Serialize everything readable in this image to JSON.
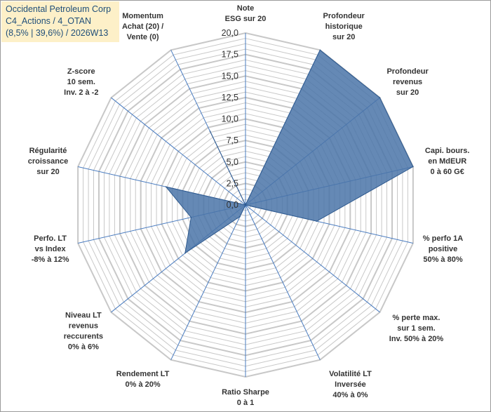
{
  "title_box": {
    "line1": "Occidental Petroleum Corp",
    "line2": "C4_Actions / 4_OTAN",
    "line3": "(8,5% | 39,6%) / 2026W13"
  },
  "colors": {
    "series_fill": "#4a74a8",
    "series_stroke": "#2f5a8f",
    "grid": "#c8c8c8",
    "spoke": "#4a7cc0"
  },
  "chart_data": {
    "type": "radar",
    "title": "",
    "rlim": [
      0,
      20
    ],
    "ticks": [
      0,
      2.5,
      5,
      7.5,
      10,
      12.5,
      15,
      17.5,
      20
    ],
    "tick_labels": [
      "0,0",
      "2,5",
      "5,0",
      "7,5",
      "10,0",
      "12,5",
      "15,0",
      "17,5",
      "20,0"
    ],
    "axes": [
      {
        "label": [
          "Note",
          "ESG sur 20"
        ],
        "value": 0
      },
      {
        "label": [
          "Profondeur",
          "historique",
          "sur 20"
        ],
        "value": 20
      },
      {
        "label": [
          "Profondeur",
          "revenus",
          "sur 20"
        ],
        "value": 20
      },
      {
        "label": [
          "Capi. bours.",
          "en MdEUR",
          "0 à 60 G€"
        ],
        "value": 20
      },
      {
        "label": [
          "% perfo 1A",
          "positive",
          "50% à 80%"
        ],
        "value": 8.5
      },
      {
        "label": [
          "% perte max.",
          "sur 1 sem.",
          "Inv. 50% à 20%"
        ],
        "value": 0
      },
      {
        "label": [
          "Volatilité LT",
          "Inversée",
          "40% à 0%"
        ],
        "value": 0
      },
      {
        "label": [
          "Ratio Sharpe",
          "0 à 1"
        ],
        "value": 0
      },
      {
        "label": [
          "Rendement LT",
          "0% à 20%"
        ],
        "value": 1.5
      },
      {
        "label": [
          "Niveau LT",
          "revenus",
          "reccurents",
          "0% à 6%"
        ],
        "value": 9
      },
      {
        "label": [
          "Perfo. LT",
          "vs Index",
          "-8% à 12%"
        ],
        "value": 6.5
      },
      {
        "label": [
          "Régularité",
          "croissance",
          "sur 20"
        ],
        "value": 9.5
      },
      {
        "label": [
          "Z-score",
          "10 sem.",
          "Inv. 2 à -2"
        ],
        "value": 0
      },
      {
        "label": [
          "Momentum",
          "Achat (20) /",
          "Vente (0)"
        ],
        "value": 9.5
      }
    ],
    "series": [
      {
        "name": "Occidental Petroleum Corp",
        "values": [
          0,
          20,
          20,
          20,
          8.5,
          0,
          0,
          0,
          1.5,
          9,
          6.5,
          9.5,
          0,
          9.5
        ]
      }
    ]
  }
}
